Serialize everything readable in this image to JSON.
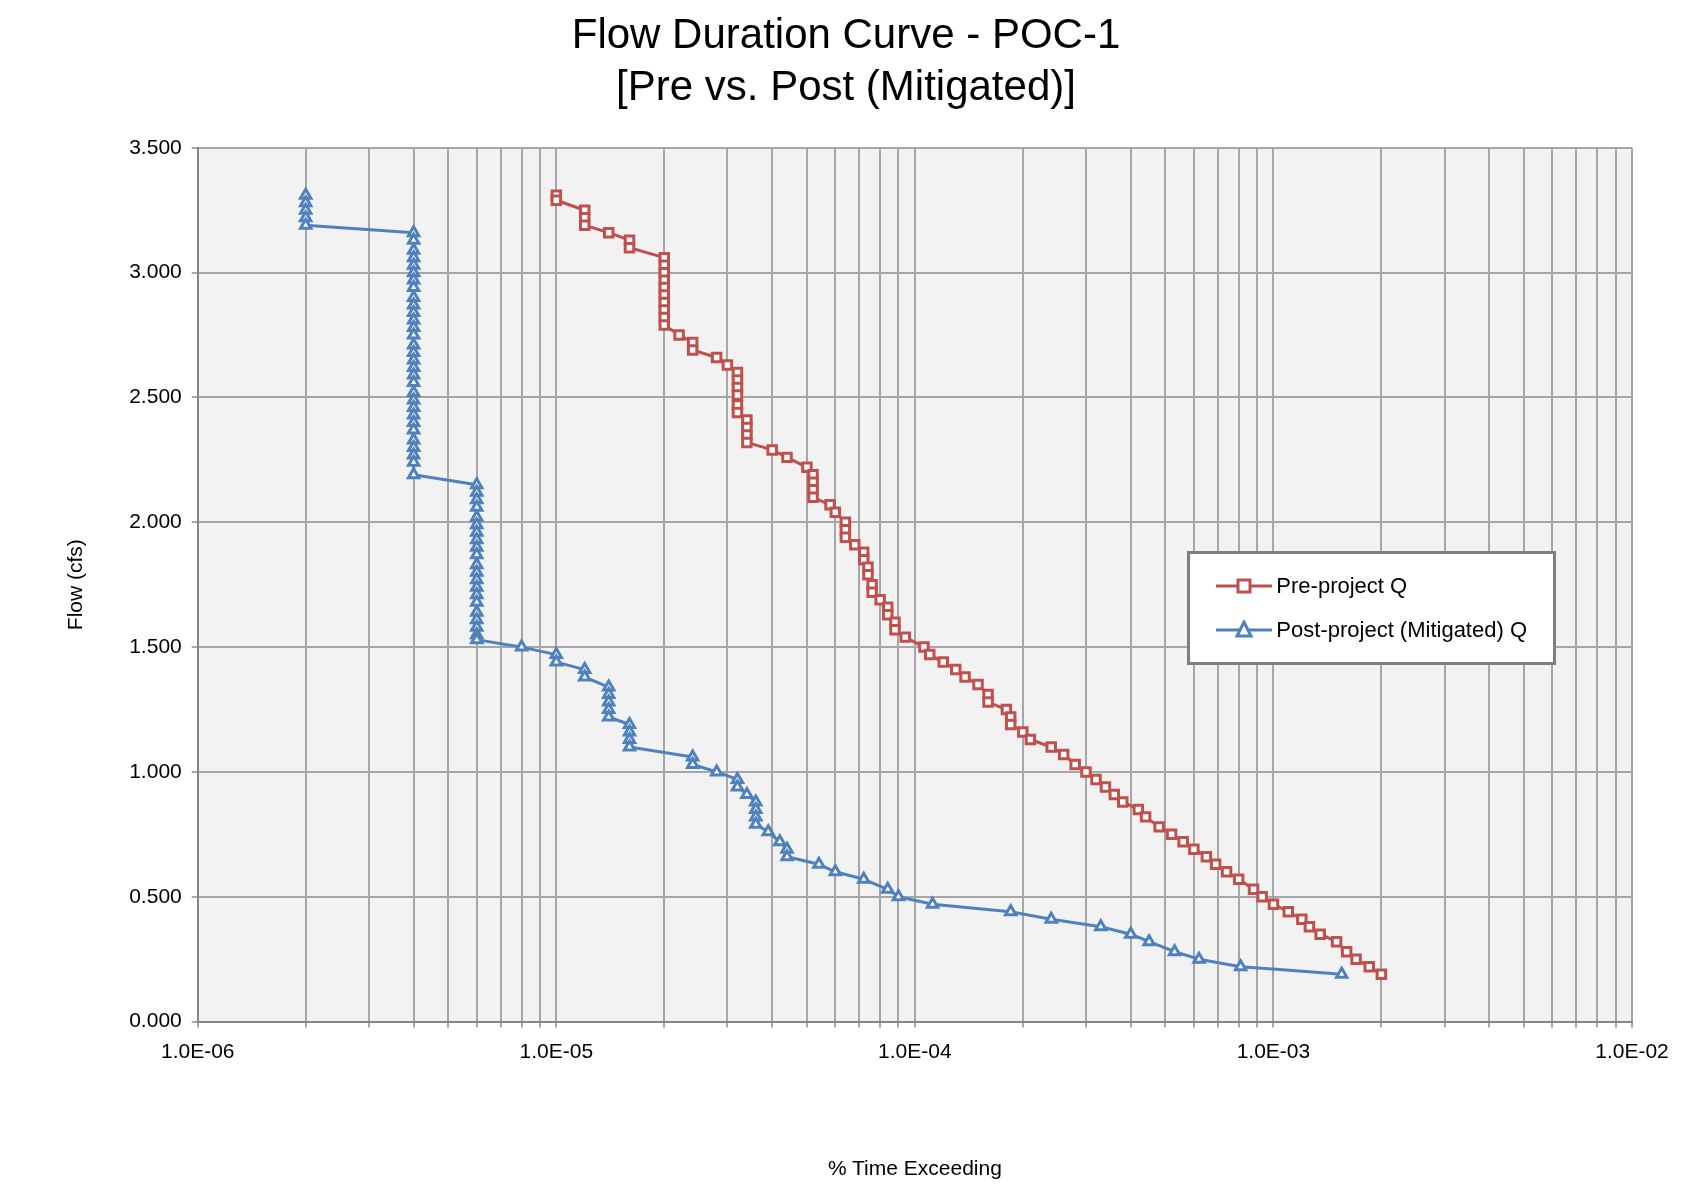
{
  "chart_data": {
    "type": "line",
    "title": "Flow Duration Curve - POC-1",
    "subtitle": "[Pre vs. Post (Mitigated)]",
    "xlabel": "% Time Exceeding",
    "ylabel": "Flow (cfs)",
    "log": "x",
    "grid": true,
    "legend": "right",
    "line_style": "solid",
    "xlim": [
      1e-06,
      0.01
    ],
    "xticks": [
      {
        "value": 1e-06,
        "label": "1.0E-06"
      },
      {
        "value": 2e-06,
        "label": null
      },
      {
        "value": 3e-06,
        "label": null
      },
      {
        "value": 4e-06,
        "label": null
      },
      {
        "value": 5e-06,
        "label": null
      },
      {
        "value": 6e-06,
        "label": null
      },
      {
        "value": 7e-06,
        "label": null
      },
      {
        "value": 8e-06,
        "label": null
      },
      {
        "value": 9e-06,
        "label": null
      },
      {
        "value": 1e-05,
        "label": "1.0E-05"
      },
      {
        "value": 2e-05,
        "label": null
      },
      {
        "value": 3e-05,
        "label": null
      },
      {
        "value": 4e-05,
        "label": null
      },
      {
        "value": 5e-05,
        "label": null
      },
      {
        "value": 6e-05,
        "label": null
      },
      {
        "value": 7e-05,
        "label": null
      },
      {
        "value": 8e-05,
        "label": null
      },
      {
        "value": 9e-05,
        "label": null
      },
      {
        "value": 0.0001,
        "label": "1.0E-04"
      },
      {
        "value": 0.0002,
        "label": null
      },
      {
        "value": 0.0003,
        "label": null
      },
      {
        "value": 0.0004,
        "label": null
      },
      {
        "value": 0.0005,
        "label": null
      },
      {
        "value": 0.0006,
        "label": null
      },
      {
        "value": 0.0007,
        "label": null
      },
      {
        "value": 0.0008,
        "label": null
      },
      {
        "value": 0.0009,
        "label": null
      },
      {
        "value": 0.001,
        "label": "1.0E-03"
      },
      {
        "value": 0.002,
        "label": null
      },
      {
        "value": 0.003,
        "label": null
      },
      {
        "value": 0.004,
        "label": null
      },
      {
        "value": 0.005,
        "label": null
      },
      {
        "value": 0.006,
        "label": null
      },
      {
        "value": 0.007,
        "label": null
      },
      {
        "value": 0.008,
        "label": null
      },
      {
        "value": 0.009,
        "label": null
      },
      {
        "value": 0.01,
        "label": "1.0E-02"
      }
    ],
    "ylim": [
      0,
      3.5
    ],
    "yticks": [
      {
        "value": 0,
        "label": "0.000"
      },
      {
        "value": 0.5,
        "label": "0.500"
      },
      {
        "value": 1,
        "label": "1.000"
      },
      {
        "value": 1.5,
        "label": "1.500"
      },
      {
        "value": 2,
        "label": "2.000"
      },
      {
        "value": 2.5,
        "label": "2.500"
      },
      {
        "value": 3,
        "label": "3.000"
      },
      {
        "value": 3.5,
        "label": "3.500"
      }
    ],
    "series": [
      {
        "name": "Pre-project Q",
        "color": "#c0504d",
        "marker": "square",
        "x": [
          1e-05,
          1e-05,
          1.2e-05,
          1.2e-05,
          1.2e-05,
          1.4e-05,
          1.6e-05,
          1.6e-05,
          2e-05,
          2e-05,
          2e-05,
          2e-05,
          2e-05,
          2e-05,
          2e-05,
          2e-05,
          2e-05,
          2e-05,
          2.2e-05,
          2.4e-05,
          2.4e-05,
          2.8e-05,
          3e-05,
          3.2e-05,
          3.2e-05,
          3.2e-05,
          3.2e-05,
          3.2e-05,
          3.2e-05,
          3.4e-05,
          3.4e-05,
          3.4e-05,
          3.4e-05,
          4e-05,
          4.4e-05,
          5e-05,
          5.2e-05,
          5.2e-05,
          5.2e-05,
          5.2e-05,
          5.8e-05,
          6e-05,
          6.4e-05,
          6.4e-05,
          6.4e-05,
          6.8e-05,
          7.2e-05,
          7.2e-05,
          7.4e-05,
          7.4e-05,
          7.6e-05,
          7.6e-05,
          8e-05,
          8.4e-05,
          8.4e-05,
          8.8e-05,
          8.8e-05,
          9.4e-05,
          0.000106,
          0.00011,
          0.00012,
          0.00013,
          0.000138,
          0.00015,
          0.00016,
          0.00016,
          0.00018,
          0.000185,
          0.000185,
          0.0002,
          0.00021,
          0.00024,
          0.00026,
          0.00028,
          0.0003,
          0.00032,
          0.00034,
          0.00036,
          0.00038,
          0.00042,
          0.00044,
          0.00048,
          0.00052,
          0.00056,
          0.0006,
          0.00065,
          0.00069,
          0.00074,
          0.0008,
          0.00088,
          0.00093,
          0.001,
          0.0011,
          0.0012,
          0.00126,
          0.00135,
          0.0015,
          0.0016,
          0.0017,
          0.00185,
          0.002
        ],
        "values": [
          3.31,
          3.29,
          3.25,
          3.22,
          3.19,
          3.16,
          3.13,
          3.1,
          3.06,
          3.03,
          3.0,
          2.97,
          2.94,
          2.91,
          2.88,
          2.85,
          2.82,
          2.79,
          2.75,
          2.72,
          2.69,
          2.66,
          2.63,
          2.6,
          2.57,
          2.54,
          2.51,
          2.47,
          2.44,
          2.41,
          2.38,
          2.35,
          2.32,
          2.29,
          2.26,
          2.22,
          2.19,
          2.16,
          2.13,
          2.1,
          2.07,
          2.04,
          2.0,
          1.97,
          1.94,
          1.91,
          1.88,
          1.85,
          1.82,
          1.79,
          1.75,
          1.72,
          1.69,
          1.66,
          1.63,
          1.6,
          1.57,
          1.54,
          1.5,
          1.47,
          1.44,
          1.41,
          1.38,
          1.35,
          1.31,
          1.28,
          1.25,
          1.22,
          1.19,
          1.16,
          1.13,
          1.1,
          1.07,
          1.03,
          1.0,
          0.97,
          0.94,
          0.91,
          0.88,
          0.85,
          0.82,
          0.78,
          0.75,
          0.72,
          0.69,
          0.66,
          0.63,
          0.6,
          0.57,
          0.53,
          0.5,
          0.47,
          0.44,
          0.41,
          0.38,
          0.35,
          0.32,
          0.28,
          0.25,
          0.22,
          0.19
        ]
      },
      {
        "name": "Post-project (Mitigated) Q",
        "color": "#4f81bd",
        "marker": "triangle",
        "x": [
          2e-06,
          2e-06,
          2e-06,
          2e-06,
          2e-06,
          4e-06,
          4e-06,
          4e-06,
          4e-06,
          4e-06,
          4e-06,
          4e-06,
          4e-06,
          4e-06,
          4e-06,
          4e-06,
          4e-06,
          4e-06,
          4e-06,
          4e-06,
          4e-06,
          4e-06,
          4e-06,
          4e-06,
          4e-06,
          4e-06,
          4e-06,
          4e-06,
          4e-06,
          4e-06,
          4e-06,
          4e-06,
          4e-06,
          4e-06,
          4e-06,
          4e-06,
          6e-06,
          6e-06,
          6e-06,
          6e-06,
          6e-06,
          6e-06,
          6e-06,
          6e-06,
          6e-06,
          6e-06,
          6e-06,
          6e-06,
          6e-06,
          6e-06,
          6e-06,
          6e-06,
          6e-06,
          6e-06,
          6e-06,
          6e-06,
          6e-06,
          8e-06,
          1e-05,
          1e-05,
          1.2e-05,
          1.2e-05,
          1.4e-05,
          1.4e-05,
          1.4e-05,
          1.4e-05,
          1.4e-05,
          1.6e-05,
          1.6e-05,
          1.6e-05,
          1.6e-05,
          2.4e-05,
          2.4e-05,
          2.8e-05,
          3.2e-05,
          3.2e-05,
          3.4e-05,
          3.6e-05,
          3.6e-05,
          3.6e-05,
          3.6e-05,
          3.9e-05,
          4.2e-05,
          4.4e-05,
          4.4e-05,
          5.4e-05,
          6e-05,
          7.2e-05,
          8.4e-05,
          9e-05,
          0.000112,
          0.000185,
          0.00024,
          0.00033,
          0.0004,
          0.00045,
          0.00053,
          0.00062,
          0.00081,
          0.00155
        ],
        "values": [
          3.31,
          3.28,
          3.25,
          3.22,
          3.19,
          3.16,
          3.13,
          3.09,
          3.06,
          3.03,
          3.0,
          2.97,
          2.94,
          2.9,
          2.87,
          2.84,
          2.81,
          2.78,
          2.75,
          2.71,
          2.68,
          2.65,
          2.62,
          2.59,
          2.56,
          2.52,
          2.49,
          2.46,
          2.43,
          2.4,
          2.37,
          2.33,
          2.3,
          2.27,
          2.24,
          2.19,
          2.15,
          2.12,
          2.09,
          2.06,
          2.02,
          1.99,
          1.96,
          1.93,
          1.9,
          1.87,
          1.83,
          1.8,
          1.77,
          1.74,
          1.71,
          1.68,
          1.64,
          1.61,
          1.58,
          1.55,
          1.53,
          1.5,
          1.47,
          1.44,
          1.41,
          1.38,
          1.34,
          1.31,
          1.28,
          1.25,
          1.22,
          1.19,
          1.16,
          1.13,
          1.1,
          1.06,
          1.03,
          1.0,
          0.97,
          0.94,
          0.91,
          0.88,
          0.85,
          0.82,
          0.79,
          0.76,
          0.72,
          0.69,
          0.66,
          0.63,
          0.6,
          0.57,
          0.53,
          0.5,
          0.47,
          0.44,
          0.41,
          0.38,
          0.35,
          0.32,
          0.28,
          0.25,
          0.22,
          0.19
        ]
      }
    ]
  }
}
